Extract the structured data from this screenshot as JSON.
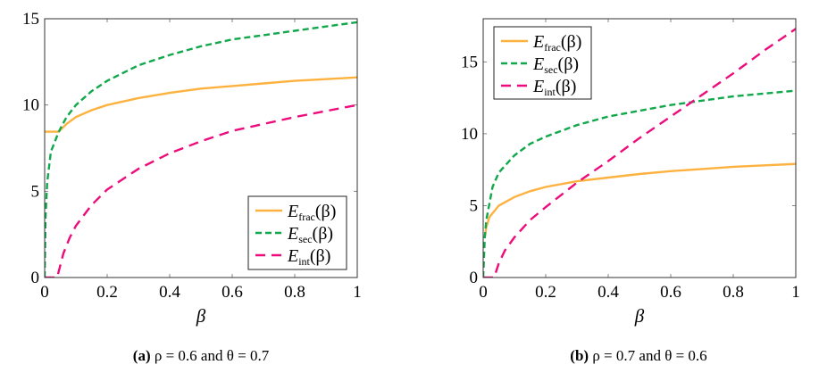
{
  "chart_data": [
    {
      "type": "line",
      "caption_label": "(a)",
      "caption_text": "ρ = 0.6 and θ = 0.7",
      "xlabel": "β",
      "ylabel": "",
      "xlim": [
        0,
        1
      ],
      "ylim": [
        0,
        15
      ],
      "xticks": [
        "0",
        "0.2",
        "0.4",
        "0.6",
        "0.8",
        "1"
      ],
      "yticks": [
        "0",
        "5",
        "10",
        "15"
      ],
      "grid": false,
      "legend_placement": "bottom-right",
      "series": [
        {
          "name": "E_frac(β)",
          "label_main": "E",
          "label_sub": "frac",
          "label_arg": "(β)",
          "color": "#FDB23F",
          "style": "solid",
          "x": [
            0,
            0.045,
            0.07,
            0.1,
            0.15,
            0.2,
            0.3,
            0.4,
            0.5,
            0.6,
            0.7,
            0.8,
            0.9,
            1
          ],
          "y": [
            8.45,
            8.45,
            8.9,
            9.3,
            9.7,
            10.0,
            10.4,
            10.7,
            10.95,
            11.1,
            11.25,
            11.4,
            11.5,
            11.6
          ]
        },
        {
          "name": "E_sec(β)",
          "label_main": "E",
          "label_sub": "sec",
          "label_arg": "(β)",
          "color": "#11A84B",
          "style": "dashed",
          "x": [
            0,
            0.003,
            0.008,
            0.02,
            0.045,
            0.07,
            0.1,
            0.15,
            0.2,
            0.3,
            0.4,
            0.5,
            0.6,
            0.7,
            0.8,
            0.9,
            1
          ],
          "y": [
            0,
            3.5,
            5.5,
            7.3,
            8.45,
            9.3,
            10.0,
            10.8,
            11.4,
            12.3,
            12.9,
            13.4,
            13.8,
            14.05,
            14.3,
            14.55,
            14.8
          ]
        },
        {
          "name": "E_int(β)",
          "label_main": "E",
          "label_sub": "int",
          "label_arg": "(β)",
          "color": "#EC0C7C",
          "style": "long-dashed",
          "x": [
            0,
            0.04,
            0.06,
            0.08,
            0.1,
            0.15,
            0.2,
            0.3,
            0.4,
            0.5,
            0.6,
            0.7,
            0.8,
            0.9,
            1
          ],
          "y": [
            0,
            0,
            1.4,
            2.3,
            3.0,
            4.2,
            5.1,
            6.3,
            7.2,
            7.9,
            8.5,
            8.9,
            9.3,
            9.65,
            10.0
          ]
        }
      ]
    },
    {
      "type": "line",
      "caption_label": "(b)",
      "caption_text": "ρ = 0.7 and θ = 0.6",
      "xlabel": "β",
      "ylabel": "",
      "xlim": [
        0,
        1
      ],
      "ylim": [
        0,
        18
      ],
      "xticks": [
        "0",
        "0.2",
        "0.4",
        "0.6",
        "0.8",
        "1"
      ],
      "yticks": [
        "0",
        "5",
        "10",
        "15"
      ],
      "grid": false,
      "legend_placement": "top-left",
      "series": [
        {
          "name": "E_frac(β)",
          "label_main": "E",
          "label_sub": "frac",
          "label_arg": "(β)",
          "color": "#FDB23F",
          "style": "solid",
          "x": [
            0.005,
            0.01,
            0.02,
            0.05,
            0.1,
            0.15,
            0.2,
            0.3,
            0.4,
            0.5,
            0.6,
            0.7,
            0.8,
            0.9,
            1
          ],
          "y": [
            2.8,
            3.5,
            4.2,
            5.0,
            5.6,
            6.0,
            6.3,
            6.7,
            6.95,
            7.2,
            7.4,
            7.55,
            7.7,
            7.8,
            7.9
          ]
        },
        {
          "name": "E_sec(β)",
          "label_main": "E",
          "label_sub": "sec",
          "label_arg": "(β)",
          "color": "#11A84B",
          "style": "dashed",
          "x": [
            0,
            0.005,
            0.01,
            0.03,
            0.05,
            0.1,
            0.15,
            0.2,
            0.3,
            0.4,
            0.5,
            0.6,
            0.7,
            0.8,
            0.9,
            1
          ],
          "y": [
            0,
            2.8,
            4.0,
            6.3,
            7.3,
            8.5,
            9.3,
            9.8,
            10.6,
            11.2,
            11.6,
            12.0,
            12.3,
            12.6,
            12.8,
            13.0
          ]
        },
        {
          "name": "E_int(β)",
          "label_main": "E",
          "label_sub": "int",
          "label_arg": "(β)",
          "color": "#EC0C7C",
          "style": "long-dashed",
          "x": [
            0,
            0.035,
            0.05,
            0.07,
            0.1,
            0.15,
            0.2,
            0.3,
            0.4,
            0.5,
            0.6,
            0.7,
            0.8,
            0.9,
            1
          ],
          "y": [
            0,
            0,
            1.0,
            1.9,
            2.8,
            4.0,
            4.9,
            6.6,
            8.1,
            9.7,
            11.2,
            12.7,
            14.2,
            15.8,
            17.3
          ]
        }
      ]
    }
  ]
}
